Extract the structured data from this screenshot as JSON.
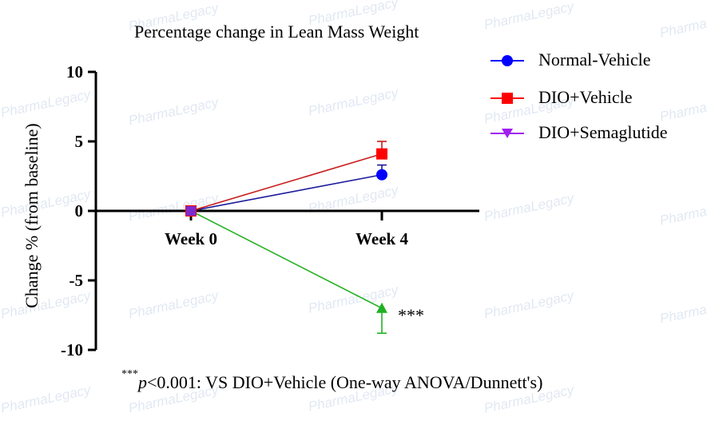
{
  "watermark": "PharmaLegacy",
  "chart_data": {
    "type": "line",
    "title": "Percentage change in Lean Mass Weight",
    "ylabel": "Change % (from baseline)",
    "xlabel": "",
    "categories": [
      "Week 0",
      "Week 4"
    ],
    "ylim": [
      -10,
      10
    ],
    "yticks": [
      10,
      5,
      0,
      -5,
      -10
    ],
    "series": [
      {
        "name": "Normal-Vehicle",
        "marker": "circle",
        "color": "#0000ff",
        "line_color": "#1a1a9c",
        "values": [
          0,
          2.6
        ],
        "error": [
          0,
          0.7
        ]
      },
      {
        "name": "DIO+Vehicle",
        "marker": "square",
        "color": "#ff0000",
        "line_color": "#c81e1e",
        "values": [
          0,
          4.1
        ],
        "error": [
          0,
          0.9
        ]
      },
      {
        "name": "DIO+Semaglutide",
        "marker": "triangle-down",
        "color": "#a020f0",
        "line_color": "#22b022",
        "values": [
          0,
          -7.0
        ],
        "error": [
          0,
          1.8
        ]
      }
    ],
    "annotation": "***",
    "legend_position": "top-right"
  },
  "footnote": {
    "stars": "***",
    "p": "p",
    "text": "<0.001: VS DIO+Vehicle (One-way ANOVA/Dunnett's)"
  }
}
